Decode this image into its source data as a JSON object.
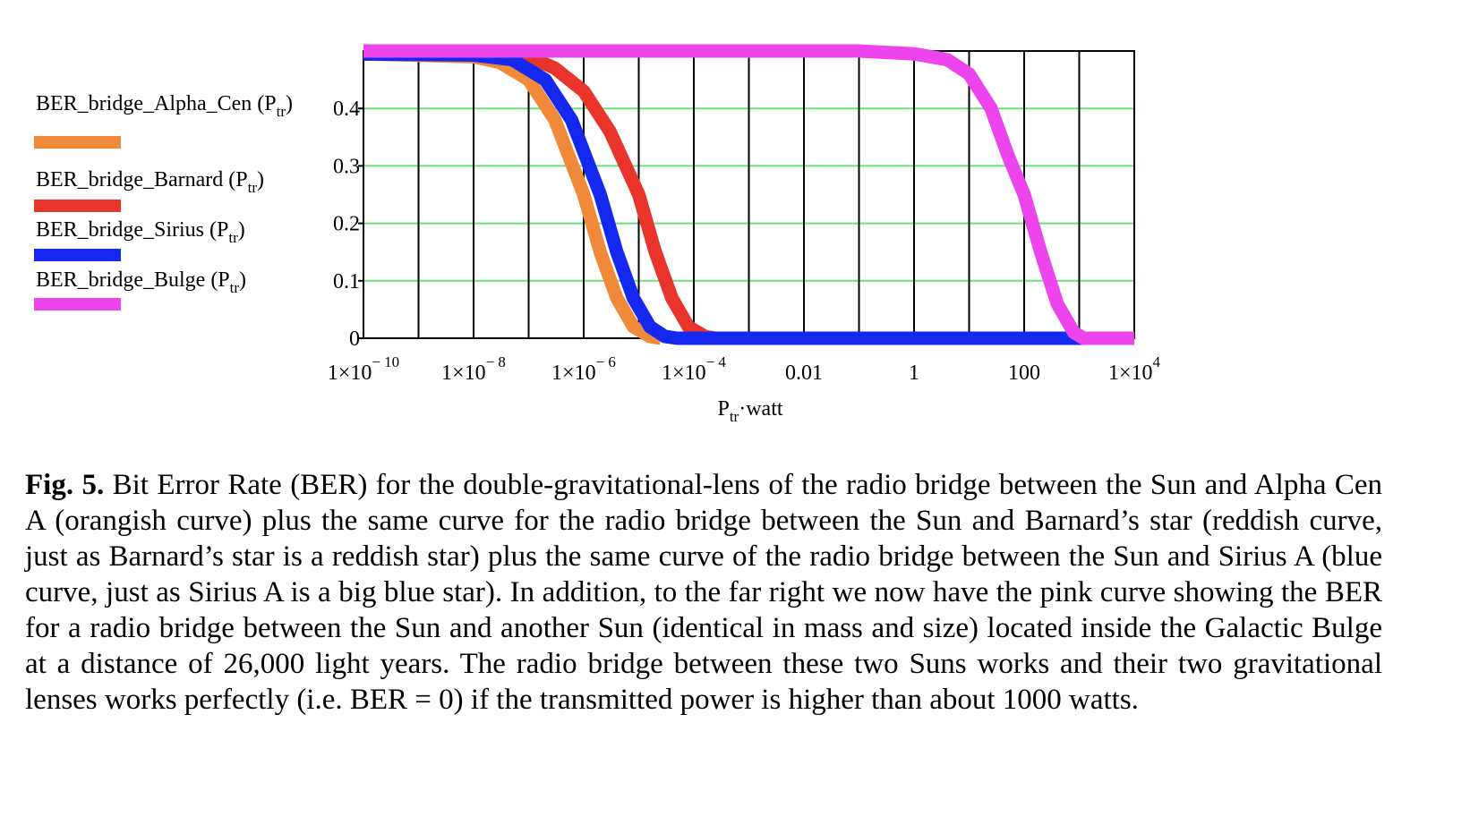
{
  "chart_data": {
    "type": "line",
    "x_scale": "log",
    "xlim": [
      1e-10,
      10000
    ],
    "ylim": [
      0,
      0.5
    ],
    "grid": true,
    "legend_position": "left",
    "xlabel": {
      "main": "P",
      "sub": "tr",
      "rest": "·watt"
    },
    "x_ticks": [
      {
        "value": 1e-10,
        "base": "1×10",
        "exp": "− 10"
      },
      {
        "value": 1e-08,
        "base": "1×10",
        "exp": "− 8"
      },
      {
        "value": 1e-06,
        "base": "1×10",
        "exp": "− 6"
      },
      {
        "value": 0.0001,
        "base": "1×10",
        "exp": "− 4"
      },
      {
        "value": 0.01,
        "base": "0.01",
        "exp": ""
      },
      {
        "value": 1,
        "base": "1",
        "exp": ""
      },
      {
        "value": 100,
        "base": "100",
        "exp": ""
      },
      {
        "value": 10000,
        "base": "1×10",
        "exp": "4"
      }
    ],
    "y_ticks": [
      {
        "value": 0,
        "label": "0"
      },
      {
        "value": 0.1,
        "label": "0.1"
      },
      {
        "value": 0.2,
        "label": "0.2"
      },
      {
        "value": 0.3,
        "label": "0.3"
      },
      {
        "value": 0.4,
        "label": "0.4"
      }
    ],
    "series": [
      {
        "name": "BER_bridge_Alpha_Cen",
        "arg": "P",
        "arg_sub": "tr",
        "color": "#F08A3A",
        "points": [
          [
            1e-10,
            0.495
          ],
          [
            1e-08,
            0.49
          ],
          [
            3e-08,
            0.48
          ],
          [
            1e-07,
            0.45
          ],
          [
            3e-07,
            0.38
          ],
          [
            1e-06,
            0.25
          ],
          [
            2e-06,
            0.15
          ],
          [
            4e-06,
            0.07
          ],
          [
            8e-06,
            0.02
          ],
          [
            1.6e-05,
            0.003
          ],
          [
            2.5e-05,
            0
          ]
        ]
      },
      {
        "name": "BER_bridge_Barnard",
        "arg": "P",
        "arg_sub": "tr",
        "color": "#E8342A",
        "points": [
          [
            1e-10,
            0.495
          ],
          [
            1e-08,
            0.495
          ],
          [
            1e-07,
            0.49
          ],
          [
            3e-07,
            0.47
          ],
          [
            1e-06,
            0.43
          ],
          [
            3e-06,
            0.36
          ],
          [
            1e-05,
            0.25
          ],
          [
            2e-05,
            0.15
          ],
          [
            4e-05,
            0.07
          ],
          [
            8e-05,
            0.02
          ],
          [
            0.00016,
            0.003
          ],
          [
            0.00025,
            0
          ]
        ]
      },
      {
        "name": "BER_bridge_Sirius",
        "arg": "P",
        "arg_sub": "tr",
        "color": "#1428F0",
        "points": [
          [
            1e-10,
            0.495
          ],
          [
            1e-08,
            0.493
          ],
          [
            5e-08,
            0.485
          ],
          [
            2e-07,
            0.45
          ],
          [
            6e-07,
            0.38
          ],
          [
            2e-06,
            0.25
          ],
          [
            4e-06,
            0.15
          ],
          [
            8e-06,
            0.07
          ],
          [
            1.6e-05,
            0.02
          ],
          [
            3e-05,
            0.003
          ],
          [
            5e-05,
            0
          ],
          [
            3000,
            0
          ]
        ]
      },
      {
        "name": "BER_bridge_Bulge",
        "arg": "P",
        "arg_sub": "tr",
        "color": "#EE44EE",
        "points": [
          [
            1e-10,
            0.5
          ],
          [
            0.1,
            0.5
          ],
          [
            1,
            0.495
          ],
          [
            4,
            0.485
          ],
          [
            10,
            0.46
          ],
          [
            25,
            0.4
          ],
          [
            50,
            0.32
          ],
          [
            100,
            0.25
          ],
          [
            200,
            0.15
          ],
          [
            400,
            0.06
          ],
          [
            800,
            0.01
          ],
          [
            1200,
            0
          ],
          [
            10000,
            0
          ]
        ]
      }
    ]
  },
  "caption": {
    "label": "Fig. 5.",
    "text": " Bit Error Rate (BER) for the double-gravitational-lens of the radio bridge between the Sun and Alpha Cen A (orangish curve) plus the same curve for the radio bridge between the Sun and Barnard’s star (reddish curve, just as Barnard’s star is a reddish star) plus the same curve of the radio bridge between the Sun and Sirius A (blue curve, just as Sirius A is a big blue star). In addition, to the far right we now have the pink curve showing the BER for a radio bridge between the Sun and another Sun (identical in mass and size) located inside the Galactic Bulge at a distance of 26,000 light years. The radio bridge between these two Suns works and their two gravitational lenses works perfectly (i.e. BER = 0) if the transmitted power is higher than about 1000 watts."
  }
}
